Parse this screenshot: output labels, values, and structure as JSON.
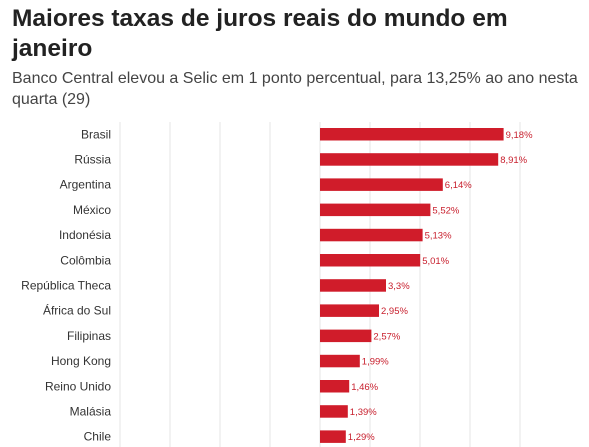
{
  "header": {
    "title": "Maiores taxas de juros reais do mundo em janeiro",
    "subtitle": "Banco Central elevou a Selic em 1 ponto percentual, para 13,25% ao ano nesta quarta (29)"
  },
  "colors": {
    "bar": "#d01c2a",
    "value_text": "#c8202e",
    "grid": "#e6e6e6"
  },
  "chart_data": {
    "type": "bar",
    "orientation": "horizontal",
    "title": "Maiores taxas de juros reais do mundo em janeiro",
    "subtitle": "Banco Central elevou a Selic em 1 ponto percentual, para 13,25% ao ano nesta quarta (29)",
    "xlabel": "",
    "ylabel": "",
    "categories": [
      "Brasil",
      "Rússia",
      "Argentina",
      "México",
      "Indonésia",
      "Colômbia",
      "República Theca",
      "África do Sul",
      "Filipinas",
      "Hong Kong",
      "Reino Unido",
      "Malásia",
      "Chile"
    ],
    "values": [
      9.18,
      8.91,
      6.14,
      5.52,
      5.13,
      5.01,
      3.3,
      2.95,
      2.57,
      1.99,
      1.46,
      1.39,
      1.29
    ],
    "value_labels": [
      "9,18%",
      "8,91%",
      "6,14%",
      "5,52%",
      "5,13%",
      "5,01%",
      "3,3%",
      "2,95%",
      "2,57%",
      "1,99%",
      "1,46%",
      "1,39%",
      "1,29%"
    ],
    "xlim": [
      -10,
      10
    ],
    "grid": true,
    "legend": "none"
  }
}
